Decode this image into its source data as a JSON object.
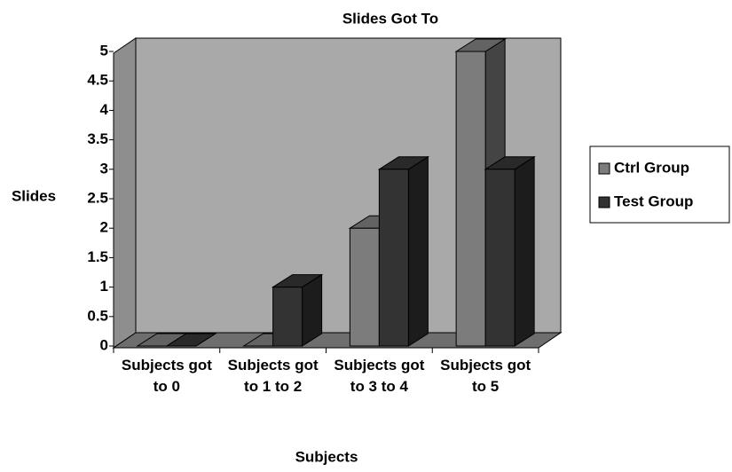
{
  "chart_data": {
    "type": "bar3d",
    "title": "Slides Got To",
    "x_label": "Subjects",
    "y_label": "Slides",
    "categories": [
      "Subjects got to 0",
      "Subjects got to 1 to 2",
      "Subjects got to 3 to 4",
      "Subjects got to 5"
    ],
    "series": [
      {
        "name": "Ctrl Group",
        "color": "#7c7c7c",
        "values": [
          0,
          0,
          2,
          5
        ]
      },
      {
        "name": "Test Group",
        "color": "#333333",
        "values": [
          0,
          1,
          3,
          3
        ]
      }
    ],
    "ylim": [
      0,
      5
    ],
    "yticks": [
      0,
      0.5,
      1,
      1.5,
      2,
      2.5,
      3,
      3.5,
      4,
      4.5,
      5
    ],
    "legend": "right"
  }
}
